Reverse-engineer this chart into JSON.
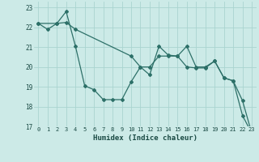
{
  "xlabel": "Humidex (Indice chaleur)",
  "background_color": "#cceae7",
  "grid_color": "#aad4d0",
  "line_color": "#2d7068",
  "xlim": [
    -0.5,
    23.5
  ],
  "ylim": [
    17,
    23.3
  ],
  "yticks": [
    17,
    18,
    19,
    20,
    21,
    22,
    23
  ],
  "xticks": [
    0,
    1,
    2,
    3,
    4,
    5,
    6,
    7,
    8,
    9,
    10,
    11,
    12,
    13,
    14,
    15,
    16,
    17,
    18,
    19,
    20,
    21,
    22,
    23
  ],
  "line1_x": [
    0,
    1,
    2,
    3,
    4,
    5,
    6,
    7,
    8,
    9,
    10,
    11,
    12,
    13,
    14,
    15,
    16,
    17,
    18,
    19,
    20,
    21,
    22,
    23
  ],
  "line1_y": [
    22.2,
    21.9,
    22.2,
    22.8,
    21.05,
    19.05,
    18.85,
    18.35,
    18.35,
    18.35,
    19.25,
    20.0,
    19.6,
    21.05,
    20.6,
    20.55,
    21.05,
    20.0,
    20.0,
    20.3,
    19.45,
    19.3,
    17.55,
    16.65
  ],
  "line2_x": [
    0,
    2,
    3,
    4,
    10,
    11,
    12,
    13,
    14,
    15,
    16,
    17,
    18,
    19,
    20,
    21,
    22,
    23
  ],
  "line2_y": [
    22.2,
    22.2,
    22.25,
    21.9,
    20.55,
    20.0,
    20.0,
    20.55,
    20.55,
    20.55,
    20.0,
    19.95,
    19.95,
    20.3,
    19.45,
    19.3,
    18.3,
    16.65
  ]
}
